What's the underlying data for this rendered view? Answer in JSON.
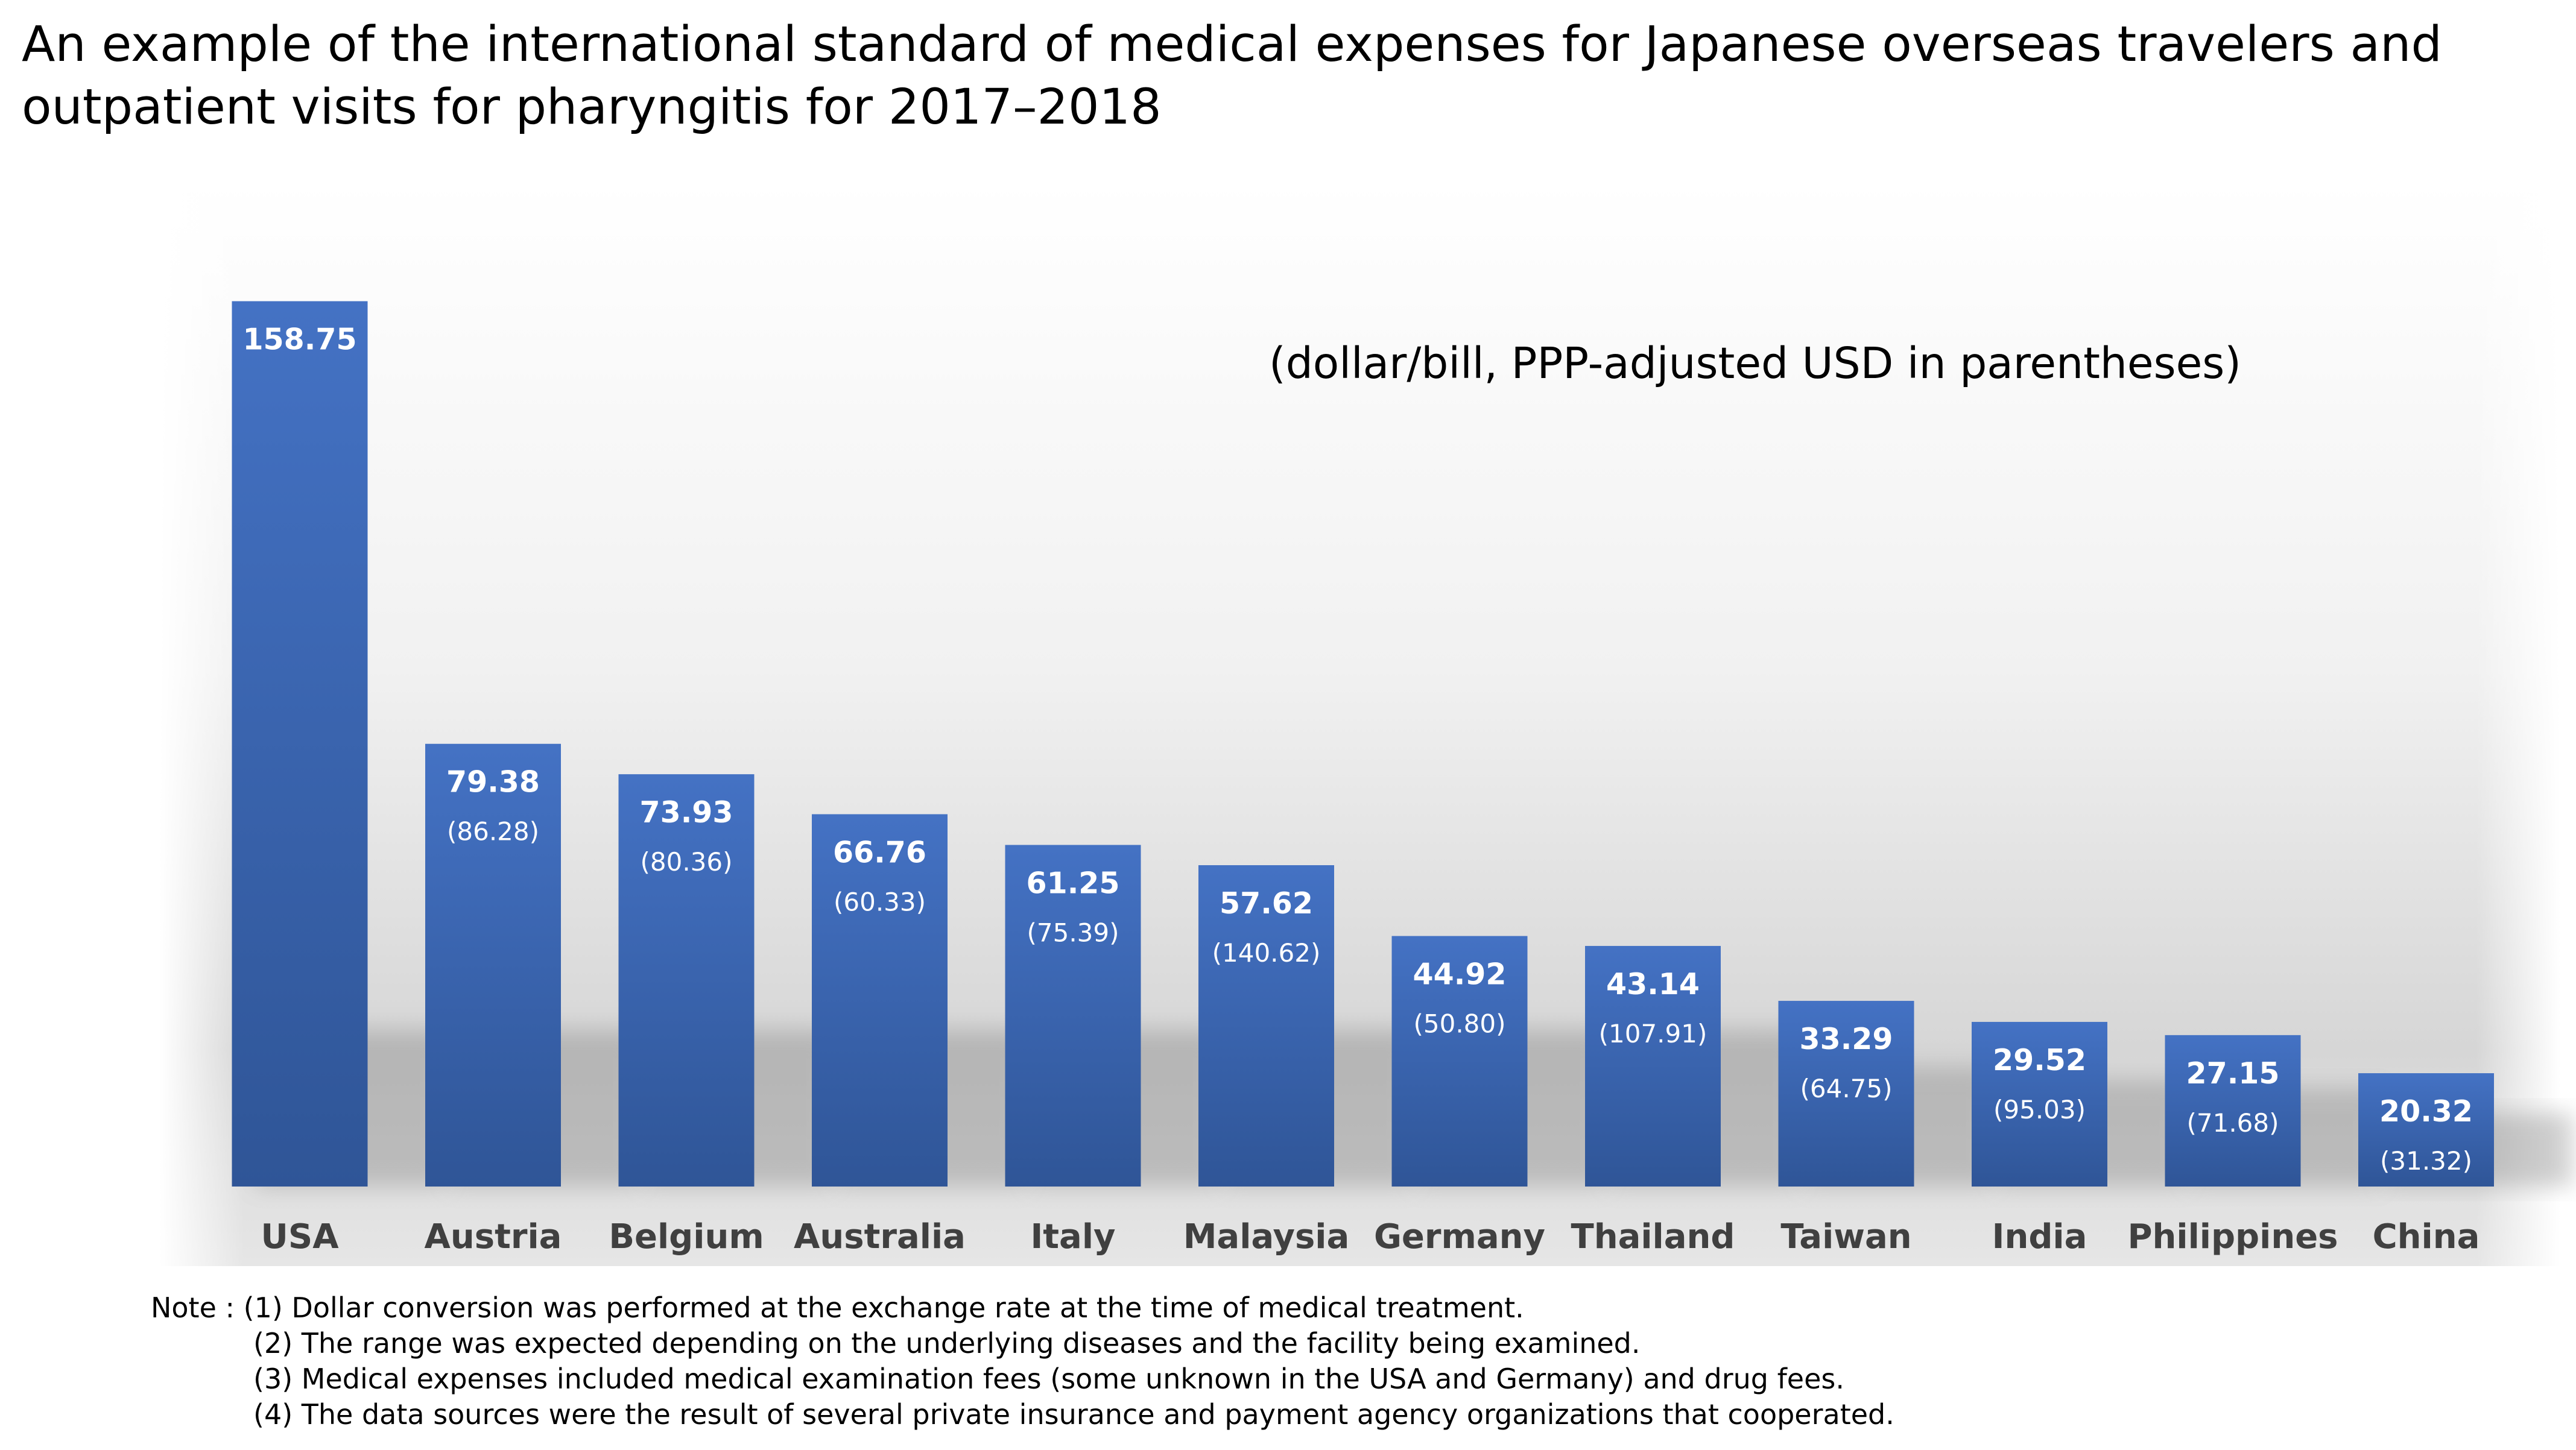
{
  "title": "An example of the international standard of medical expenses for Japanese overseas travelers and outpatient visits for pharyngitis for 2017–2018",
  "chart_data": {
    "type": "bar",
    "title": "An example of the international standard of medical expenses for Japanese overseas travelers and outpatient visits for pharyngitis for 2017–2018",
    "unit_note": "(dollar/bill,  PPP-adjusted USD in parentheses)",
    "xlabel": "",
    "ylabel": "",
    "ylim": [
      0,
      160
    ],
    "grid": false,
    "categories": [
      "USA",
      "Austria",
      "Belgium",
      "Australia",
      "Italy",
      "Malaysia",
      "Germany",
      "Thailand",
      "Taiwan",
      "India",
      "Philippines",
      "China"
    ],
    "series": [
      {
        "name": "dollar/bill",
        "values": [
          158.75,
          79.38,
          73.93,
          66.76,
          61.25,
          57.62,
          44.92,
          43.14,
          33.29,
          29.52,
          27.15,
          20.32
        ],
        "labels": [
          "158.75",
          "79.38",
          "73.93",
          "66.76",
          "61.25",
          "57.62",
          "44.92",
          "43.14",
          "33.29",
          "29.52",
          "27.15",
          "20.32"
        ]
      },
      {
        "name": "PPP-adjusted USD",
        "values": [
          null,
          86.28,
          80.36,
          60.33,
          75.39,
          140.62,
          50.8,
          107.91,
          64.75,
          95.03,
          71.68,
          31.32
        ],
        "labels": [
          "",
          "(86.28)",
          "(80.36)",
          "(60.33)",
          "(75.39)",
          "(140.62)",
          "(50.80)",
          "(107.91)",
          "(64.75)",
          "(95.03)",
          "(71.68)",
          "(31.32)"
        ]
      }
    ]
  },
  "notes": [
    "Note : (1) Dollar conversion was performed at the exchange rate at the time of medical treatment.",
    "(2) The range was expected depending on the underlying diseases and the facility being examined.",
    "(3) Medical expenses included medical examination fees (some unknown in the USA and Germany) and drug fees.",
    "(4) The data sources were the result of several private insurance and payment agency organizations that cooperated."
  ],
  "colors": {
    "bar_top": "#4472C4",
    "bar_bottom": "#2F5597",
    "bar_label": "#FFFFFF",
    "axis_label": "#404040",
    "text": "#000000"
  }
}
